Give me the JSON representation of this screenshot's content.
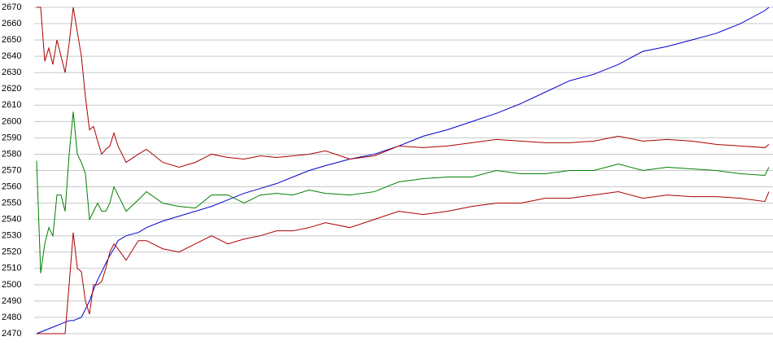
{
  "chart_data": {
    "type": "line",
    "x": [
      0,
      5,
      10,
      15,
      20,
      25,
      30,
      35,
      40,
      45,
      50,
      55,
      60,
      65,
      70,
      75,
      80,
      85,
      90,
      95,
      100,
      110,
      125,
      135,
      155,
      175,
      195,
      215,
      235,
      255,
      275,
      295,
      315,
      335,
      355,
      385,
      415,
      445,
      475,
      505,
      535,
      565,
      595,
      625,
      655,
      685,
      715,
      745,
      775,
      805,
      835,
      865,
      895,
      900
    ],
    "xlim": [
      0,
      900
    ],
    "ylim": [
      2470,
      2670
    ],
    "yticks": [
      2470,
      2480,
      2490,
      2500,
      2510,
      2520,
      2530,
      2540,
      2550,
      2560,
      2570,
      2580,
      2590,
      2600,
      2610,
      2620,
      2630,
      2640,
      2650,
      2660,
      2670
    ],
    "grid": true,
    "series": [
      {
        "color": "#0000cc",
        "values": [
          2470,
          2471,
          2472,
          2473,
          2474,
          2475,
          2476,
          2477,
          2478,
          2478,
          2479,
          2480,
          2485,
          2490,
          2497,
          2503,
          2508,
          2513,
          2518,
          2522,
          2527,
          2530,
          2532,
          2535,
          2539,
          2542,
          2545,
          2548,
          2552,
          2556,
          2559,
          2562,
          2566,
          2570,
          2573,
          2577,
          2580,
          2585,
          2591,
          2595,
          2600,
          2605,
          2611,
          2618,
          2625,
          2629,
          2635,
          2643,
          2646,
          2650,
          2654,
          2660,
          2668,
          2670
        ]
      },
      {
        "color": "#aa0000",
        "values": [
          2670,
          2670,
          2637,
          2645,
          2635,
          2650,
          2640,
          2630,
          2648,
          2670,
          2655,
          2640,
          2615,
          2595,
          2597,
          2588,
          2580,
          2583,
          2585,
          2593,
          2585,
          2575,
          2580,
          2583,
          2575,
          2572,
          2575,
          2580,
          2578,
          2577,
          2579,
          2578,
          2579,
          2580,
          2582,
          2577,
          2579,
          2585,
          2584,
          2585,
          2587,
          2589,
          2588,
          2587,
          2587,
          2588,
          2591,
          2588,
          2589,
          2588,
          2586,
          2585,
          2584,
          2586
        ]
      },
      {
        "color": "#008000",
        "values": [
          2576,
          2507,
          2525,
          2535,
          2530,
          2555,
          2555,
          2545,
          2580,
          2606,
          2580,
          2575,
          2568,
          2540,
          2545,
          2550,
          2545,
          2545,
          2550,
          2560,
          2555,
          2545,
          2552,
          2557,
          2550,
          2548,
          2547,
          2555,
          2555,
          2550,
          2555,
          2556,
          2555,
          2558,
          2556,
          2555,
          2557,
          2563,
          2565,
          2566,
          2566,
          2570,
          2568,
          2568,
          2570,
          2570,
          2574,
          2570,
          2572,
          2571,
          2570,
          2568,
          2567,
          2572
        ]
      },
      {
        "color": "#aa0000",
        "values": [
          2470,
          2470,
          2470,
          2470,
          2470,
          2470,
          2470,
          2470,
          2500,
          2532,
          2510,
          2508,
          2490,
          2482,
          2500,
          2500,
          2502,
          2510,
          2520,
          2525,
          2522,
          2515,
          2527,
          2527,
          2522,
          2520,
          2525,
          2530,
          2525,
          2528,
          2530,
          2533,
          2533,
          2535,
          2538,
          2535,
          2540,
          2545,
          2543,
          2545,
          2548,
          2550,
          2550,
          2553,
          2553,
          2555,
          2557,
          2553,
          2555,
          2554,
          2554,
          2553,
          2551,
          2557
        ]
      }
    ]
  }
}
